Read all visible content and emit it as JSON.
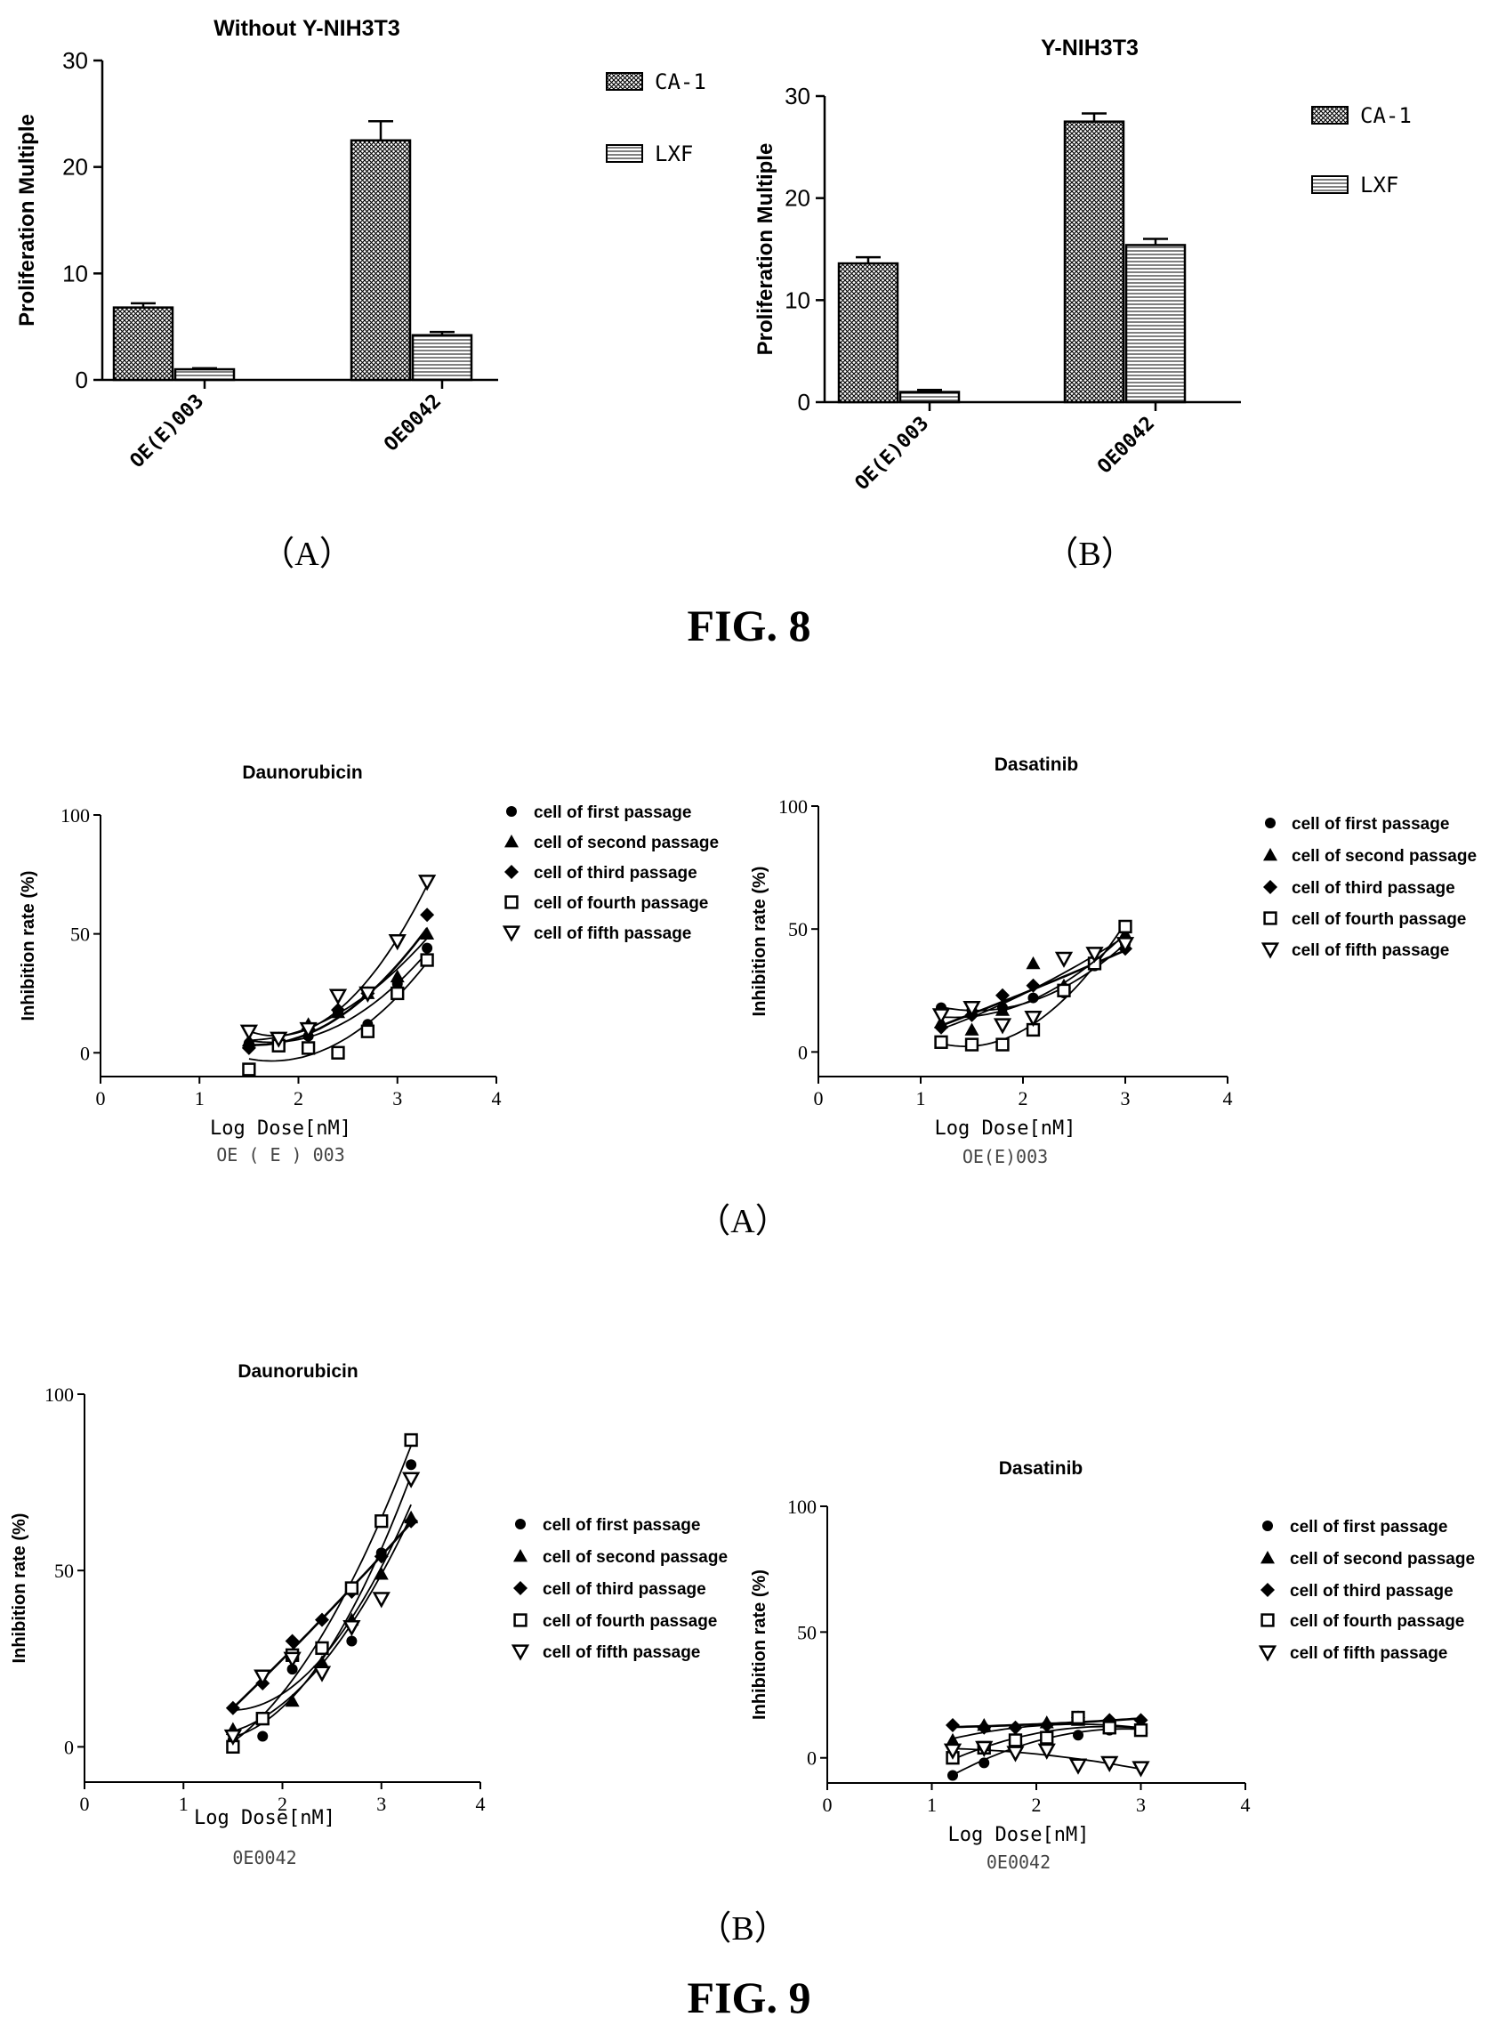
{
  "figures": {
    "fig8": {
      "label": "FIG. 8",
      "panel_a": "（A）",
      "panel_b": "（B）"
    },
    "fig9": {
      "label": "FIG. 9",
      "panel_a": "（A）",
      "panel_b": "（B）"
    }
  },
  "colors": {
    "ink": "#000000",
    "background": "#ffffff"
  },
  "icons": {
    "marker_shapes": [
      "circle-icon",
      "triangle-up-icon",
      "diamond-icon",
      "square-open-icon",
      "triangle-down-open-icon"
    ]
  },
  "chart_data": [
    {
      "id": "fig8a",
      "type": "bar",
      "title": "Without Υ-NIH3T3",
      "ylabel": "Proliferation Multiple",
      "xlabel": "",
      "categories": [
        "OE(E)003",
        "OE0042"
      ],
      "yticks": [
        0,
        10,
        20,
        30
      ],
      "ylim": [
        0,
        30
      ],
      "series": [
        {
          "name": "CA-1",
          "values": [
            6.8,
            22.5
          ],
          "errors": [
            0.4,
            1.8
          ]
        },
        {
          "name": "LXF",
          "values": [
            1.0,
            4.2
          ],
          "errors": [
            0.1,
            0.3
          ]
        }
      ],
      "legend": "right"
    },
    {
      "id": "fig8b",
      "type": "bar",
      "title": "Υ-NIH3T3",
      "ylabel": "Proliferation Multiple",
      "xlabel": "",
      "categories": [
        "OE(E)003",
        "OE0042"
      ],
      "yticks": [
        0,
        10,
        20,
        30
      ],
      "ylim": [
        0,
        30
      ],
      "series": [
        {
          "name": "CA-1",
          "values": [
            13.6,
            27.5
          ],
          "errors": [
            0.6,
            0.8
          ]
        },
        {
          "name": "LXF",
          "values": [
            1.0,
            15.4
          ],
          "errors": [
            0.2,
            0.6
          ]
        }
      ],
      "legend": "right"
    },
    {
      "id": "fig9a1",
      "type": "scatter",
      "title": "Daunorubicin",
      "xlabel": "Log Dose[nM]",
      "ylabel": "Inhibition rate (%)",
      "caption": "OE ( E ) 003",
      "xlim": [
        0,
        4
      ],
      "ylim": [
        -10,
        100
      ],
      "xticks": [
        0,
        1,
        2,
        3,
        4
      ],
      "yticks": [
        0,
        50,
        100
      ],
      "x": [
        1.5,
        1.8,
        2.1,
        2.4,
        2.7,
        3.0,
        3.3
      ],
      "series": [
        {
          "name": "cell of first passage",
          "values": [
            4,
            5,
            7,
            17,
            12,
            29,
            44
          ]
        },
        {
          "name": "cell of second passage",
          "values": [
            5,
            6,
            12,
            17,
            25,
            32,
            50
          ]
        },
        {
          "name": "cell of third passage",
          "values": [
            2,
            4,
            10,
            18,
            25,
            27,
            58
          ]
        },
        {
          "name": "cell of fourth passage",
          "values": [
            -7,
            3,
            2,
            0,
            9,
            25,
            39
          ]
        },
        {
          "name": "cell of fifth passage",
          "values": [
            9,
            6,
            10,
            24,
            25,
            47,
            72
          ]
        }
      ],
      "legend": "right"
    },
    {
      "id": "fig9a2",
      "type": "scatter",
      "title": "Dasatinib",
      "xlabel": "Log Dose[nM]",
      "ylabel": "Inhibition rate (%)",
      "caption": "OE(E)003",
      "xlim": [
        0,
        4
      ],
      "ylim": [
        -10,
        100
      ],
      "xticks": [
        0,
        1,
        2,
        3,
        4
      ],
      "yticks": [
        0,
        50,
        100
      ],
      "x": [
        1.2,
        1.5,
        1.8,
        2.1,
        2.4,
        2.7,
        3.0
      ],
      "series": [
        {
          "name": "cell of first passage",
          "values": [
            18,
            17,
            18,
            22,
            24,
            35,
            44
          ]
        },
        {
          "name": "cell of second passage",
          "values": [
            12,
            9,
            17,
            36,
            27,
            38,
            48
          ]
        },
        {
          "name": "cell of third passage",
          "values": [
            10,
            15,
            23,
            27,
            26,
            37,
            42
          ]
        },
        {
          "name": "cell of fourth passage",
          "values": [
            4,
            3,
            3,
            9,
            25,
            36,
            51
          ]
        },
        {
          "name": "cell of fifth passage",
          "values": [
            15,
            18,
            11,
            14,
            38,
            40,
            44
          ]
        }
      ],
      "legend": "right"
    },
    {
      "id": "fig9b1",
      "type": "scatter",
      "title": "Daunorubicin",
      "xlabel": "Log Dose[nM]",
      "ylabel": "Inhibition rate (%)",
      "caption": "0E0042",
      "xlim": [
        0,
        4
      ],
      "ylim": [
        -10,
        100
      ],
      "xticks": [
        0,
        1,
        2,
        3,
        4
      ],
      "yticks": [
        0,
        50,
        100
      ],
      "x": [
        1.5,
        1.8,
        2.1,
        2.4,
        2.7,
        3.0,
        3.3
      ],
      "series": [
        {
          "name": "cell of first passage",
          "values": [
            2,
            3,
            22,
            28,
            30,
            55,
            80
          ]
        },
        {
          "name": "cell of second passage",
          "values": [
            5,
            8,
            13,
            24,
            36,
            49,
            65
          ]
        },
        {
          "name": "cell of third passage",
          "values": [
            11,
            18,
            30,
            36,
            44,
            54,
            64
          ]
        },
        {
          "name": "cell of fourth passage",
          "values": [
            0,
            8,
            26,
            28,
            45,
            64,
            87
          ]
        },
        {
          "name": "cell of fifth passage",
          "values": [
            3,
            20,
            25,
            21,
            34,
            42,
            76
          ]
        }
      ],
      "legend": "right"
    },
    {
      "id": "fig9b2",
      "type": "scatter",
      "title": "Dasatinib",
      "xlabel": "Log Dose[nM]",
      "ylabel": "Inhibition rate (%)",
      "caption": "0E0042",
      "xlim": [
        0,
        4
      ],
      "ylim": [
        -10,
        100
      ],
      "xticks": [
        0,
        1,
        2,
        3,
        4
      ],
      "yticks": [
        0,
        50,
        100
      ],
      "x": [
        1.2,
        1.5,
        1.8,
        2.1,
        2.4,
        2.7,
        3.0
      ],
      "series": [
        {
          "name": "cell of first passage",
          "values": [
            -7,
            -2,
            7,
            7,
            9,
            11,
            12
          ]
        },
        {
          "name": "cell of second passage",
          "values": [
            7,
            13,
            8,
            14,
            15,
            12,
            12
          ]
        },
        {
          "name": "cell of third passage",
          "values": [
            13,
            12,
            12,
            13,
            16,
            15,
            15
          ]
        },
        {
          "name": "cell of fourth passage",
          "values": [
            0,
            4,
            7,
            8,
            16,
            12,
            11
          ]
        },
        {
          "name": "cell of fifth passage",
          "values": [
            3,
            4,
            2,
            3,
            -3,
            -2,
            -4
          ]
        }
      ],
      "legend": "right"
    }
  ]
}
